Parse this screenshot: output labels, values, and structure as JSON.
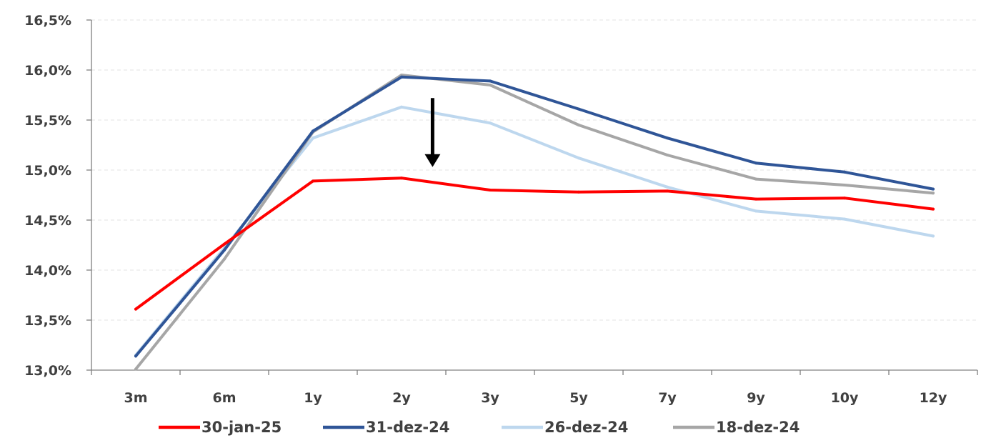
{
  "chart_data": {
    "type": "line",
    "title": "",
    "xlabel": "",
    "ylabel": "",
    "categories": [
      "3m",
      "6m",
      "1y",
      "2y",
      "3y",
      "5y",
      "7y",
      "9y",
      "10y",
      "12y"
    ],
    "ylim": [
      13.0,
      16.5
    ],
    "yticks": [
      13.0,
      13.5,
      14.0,
      14.5,
      15.0,
      15.5,
      16.0,
      16.5
    ],
    "ytick_labels": [
      "13,0%",
      "13,5%",
      "14,0%",
      "14,5%",
      "15,0%",
      "15,5%",
      "16,0%",
      "16,5%"
    ],
    "grid": true,
    "legend_position": "bottom",
    "series": [
      {
        "name": "30-jan-25",
        "color": "#ff0000",
        "values": [
          13.61,
          14.26,
          14.89,
          14.92,
          14.8,
          14.78,
          14.79,
          14.71,
          14.72,
          14.61
        ]
      },
      {
        "name": "31-dez-24",
        "color": "#2f5597",
        "values": [
          13.14,
          14.2,
          15.39,
          15.93,
          15.89,
          15.61,
          15.32,
          15.07,
          14.98,
          14.81
        ]
      },
      {
        "name": "26-dez-24",
        "color": "#bdd7ee",
        "values": [
          13.15,
          14.22,
          15.32,
          15.63,
          15.47,
          15.12,
          14.83,
          14.59,
          14.51,
          14.34
        ]
      },
      {
        "name": "18-dez-24",
        "color": "#a6a6a6",
        "values": [
          13.01,
          14.11,
          15.38,
          15.95,
          15.85,
          15.45,
          15.15,
          14.91,
          14.85,
          14.77
        ]
      }
    ],
    "annotation": {
      "type": "down-arrow",
      "x_from": 3.35,
      "y_from": 15.72,
      "y_to": 15.03
    }
  }
}
